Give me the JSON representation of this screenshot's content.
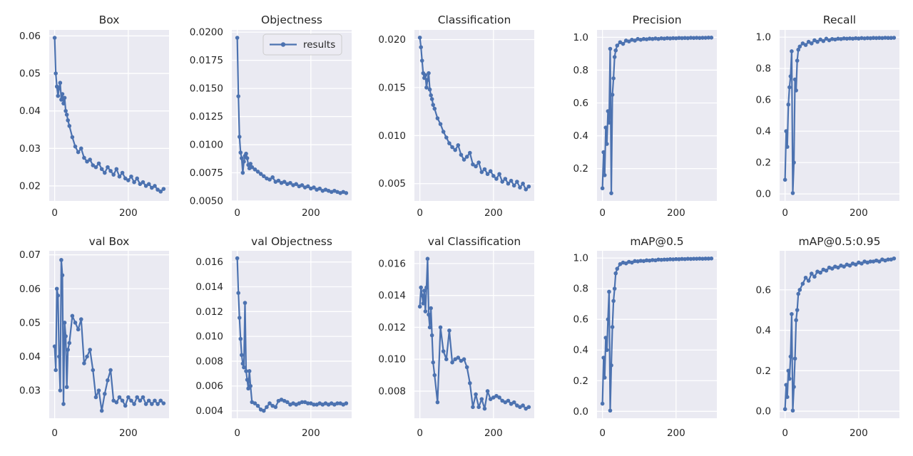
{
  "figure": {
    "kind": "training results grid (YOLO results.png style)",
    "background": "#ffffff",
    "plot_bg": "#eaeaf2",
    "grid_color": "#ffffff",
    "accent": "#4c72b0",
    "text_color": "#262626"
  },
  "chart_data": {
    "type": "line",
    "series_name": "results",
    "legend": {
      "label": "results",
      "subplot": "Objectness",
      "position": "upper right"
    },
    "grid": true,
    "marker": "circle",
    "xlim": [
      -14.8,
      310.8
    ],
    "xticks": {
      "values": [
        0,
        200
      ],
      "labels": [
        "0",
        "200"
      ]
    },
    "x": [
      0,
      3,
      6,
      9,
      12,
      15,
      18,
      21,
      24,
      27,
      30,
      33,
      36,
      40,
      48,
      56,
      64,
      72,
      80,
      88,
      96,
      104,
      112,
      120,
      128,
      136,
      144,
      152,
      160,
      168,
      176,
      184,
      192,
      200,
      208,
      216,
      224,
      232,
      240,
      248,
      256,
      264,
      272,
      280,
      288,
      296
    ],
    "subplots": [
      {
        "title": "Box",
        "row": 0,
        "yticks": [
          "0.02",
          "0.03",
          "0.04",
          "0.05",
          "0.06"
        ],
        "ylim": [
          0.016,
          0.0616
        ],
        "values": [
          0.0595,
          0.05,
          0.0465,
          0.044,
          0.046,
          0.0475,
          0.043,
          0.0445,
          0.042,
          0.0435,
          0.04,
          0.039,
          0.0375,
          0.036,
          0.033,
          0.0305,
          0.029,
          0.03,
          0.0275,
          0.0265,
          0.027,
          0.0255,
          0.025,
          0.026,
          0.0245,
          0.0235,
          0.025,
          0.024,
          0.023,
          0.0245,
          0.0225,
          0.0235,
          0.022,
          0.0215,
          0.0225,
          0.021,
          0.022,
          0.0205,
          0.021,
          0.02,
          0.0205,
          0.0195,
          0.02,
          0.019,
          0.0185,
          0.0192
        ]
      },
      {
        "title": "Objectness",
        "row": 0,
        "show_legend": true,
        "yticks": [
          "0.0050",
          "0.0075",
          "0.0100",
          "0.0125",
          "0.0150",
          "0.0175",
          "0.0200"
        ],
        "ylim": [
          0.005,
          0.0202
        ],
        "values": [
          0.0195,
          0.0143,
          0.0107,
          0.0093,
          0.0088,
          0.0075,
          0.0085,
          0.009,
          0.0092,
          0.0088,
          0.0082,
          0.0079,
          0.0083,
          0.008,
          0.0078,
          0.0076,
          0.0074,
          0.0072,
          0.007,
          0.0069,
          0.0071,
          0.0067,
          0.0068,
          0.0066,
          0.0067,
          0.0065,
          0.0066,
          0.0064,
          0.0065,
          0.0063,
          0.0064,
          0.0062,
          0.0063,
          0.0061,
          0.0062,
          0.006,
          0.0061,
          0.0059,
          0.006,
          0.0059,
          0.0058,
          0.0059,
          0.0058,
          0.0057,
          0.0058,
          0.0057
        ]
      },
      {
        "title": "Classification",
        "row": 0,
        "yticks": [
          "0.005",
          "0.010",
          "0.015",
          "0.020"
        ],
        "ylim": [
          0.0032,
          0.021
        ],
        "values": [
          0.0202,
          0.0192,
          0.0178,
          0.0165,
          0.016,
          0.0163,
          0.015,
          0.0158,
          0.0165,
          0.0148,
          0.0142,
          0.0138,
          0.0132,
          0.0128,
          0.0118,
          0.0112,
          0.0104,
          0.0098,
          0.0092,
          0.0088,
          0.0085,
          0.009,
          0.008,
          0.0075,
          0.0078,
          0.0082,
          0.007,
          0.0068,
          0.0072,
          0.0062,
          0.0065,
          0.006,
          0.0063,
          0.0058,
          0.0055,
          0.006,
          0.0052,
          0.0055,
          0.005,
          0.0053,
          0.0048,
          0.0052,
          0.0046,
          0.005,
          0.0044,
          0.0047
        ]
      },
      {
        "title": "Precision",
        "row": 0,
        "yticks": [
          "0.2",
          "0.4",
          "0.6",
          "0.8",
          "1.0"
        ],
        "ylim": [
          0.003,
          1.045
        ],
        "values": [
          0.08,
          0.3,
          0.16,
          0.45,
          0.35,
          0.55,
          0.48,
          0.93,
          0.05,
          0.65,
          0.75,
          0.88,
          0.92,
          0.95,
          0.97,
          0.96,
          0.98,
          0.975,
          0.985,
          0.98,
          0.99,
          0.985,
          0.99,
          0.988,
          0.992,
          0.99,
          0.993,
          0.99,
          0.994,
          0.992,
          0.995,
          0.993,
          0.995,
          0.994,
          0.996,
          0.995,
          0.996,
          0.995,
          0.997,
          0.996,
          0.997,
          0.996,
          0.997,
          0.997,
          0.998,
          0.998
        ]
      },
      {
        "title": "Recall",
        "row": 0,
        "yticks": [
          "0.0",
          "0.2",
          "0.4",
          "0.6",
          "0.8",
          "1.0"
        ],
        "ylim": [
          -0.045,
          1.046
        ],
        "values": [
          0.09,
          0.4,
          0.3,
          0.57,
          0.68,
          0.75,
          0.91,
          0.005,
          0.2,
          0.73,
          0.66,
          0.85,
          0.92,
          0.94,
          0.96,
          0.95,
          0.97,
          0.96,
          0.98,
          0.97,
          0.985,
          0.975,
          0.99,
          0.98,
          0.988,
          0.985,
          0.99,
          0.988,
          0.992,
          0.99,
          0.992,
          0.99,
          0.993,
          0.991,
          0.994,
          0.992,
          0.994,
          0.993,
          0.995,
          0.994,
          0.995,
          0.994,
          0.996,
          0.995,
          0.995,
          0.996
        ]
      },
      {
        "title": "val Box",
        "row": 1,
        "yticks": [
          "0.03",
          "0.04",
          "0.05",
          "0.06",
          "0.07"
        ],
        "ylim": [
          0.0218,
          0.0712
        ],
        "values": [
          0.043,
          0.036,
          0.06,
          0.058,
          0.04,
          0.03,
          0.0685,
          0.064,
          0.026,
          0.05,
          0.046,
          0.031,
          0.042,
          0.044,
          0.052,
          0.05,
          0.048,
          0.051,
          0.038,
          0.04,
          0.042,
          0.036,
          0.028,
          0.03,
          0.024,
          0.029,
          0.033,
          0.036,
          0.027,
          0.0265,
          0.028,
          0.027,
          0.0255,
          0.028,
          0.027,
          0.026,
          0.028,
          0.027,
          0.028,
          0.026,
          0.027,
          0.026,
          0.027,
          0.026,
          0.027,
          0.0262
        ]
      },
      {
        "title": "val Objectness",
        "row": 1,
        "yticks": [
          "0.004",
          "0.006",
          "0.008",
          "0.010",
          "0.012",
          "0.014",
          "0.016"
        ],
        "ylim": [
          0.0034,
          0.0169
        ],
        "values": [
          0.0163,
          0.0135,
          0.0115,
          0.0098,
          0.0085,
          0.0078,
          0.0075,
          0.0127,
          0.0072,
          0.0065,
          0.0058,
          0.0072,
          0.006,
          0.0047,
          0.0046,
          0.0044,
          0.0041,
          0.004,
          0.0043,
          0.0046,
          0.0044,
          0.0043,
          0.0048,
          0.0049,
          0.0048,
          0.0047,
          0.0045,
          0.0046,
          0.0045,
          0.0046,
          0.0047,
          0.0047,
          0.0046,
          0.0046,
          0.0045,
          0.0045,
          0.0046,
          0.0045,
          0.0046,
          0.0045,
          0.0046,
          0.0045,
          0.0046,
          0.0046,
          0.0045,
          0.0046
        ]
      },
      {
        "title": "val Classification",
        "row": 1,
        "yticks": [
          "0.008",
          "0.010",
          "0.012",
          "0.014",
          "0.016"
        ],
        "ylim": [
          0.0063,
          0.0168
        ],
        "values": [
          0.0133,
          0.0145,
          0.014,
          0.0135,
          0.0143,
          0.013,
          0.0145,
          0.0163,
          0.0128,
          0.012,
          0.0132,
          0.0115,
          0.0098,
          0.009,
          0.0073,
          0.012,
          0.0105,
          0.01,
          0.0118,
          0.0098,
          0.01,
          0.0101,
          0.0099,
          0.01,
          0.0095,
          0.0085,
          0.007,
          0.0078,
          0.007,
          0.0075,
          0.0069,
          0.008,
          0.0075,
          0.0076,
          0.0077,
          0.0076,
          0.0074,
          0.0073,
          0.0074,
          0.0072,
          0.0073,
          0.0071,
          0.007,
          0.0071,
          0.0069,
          0.007
        ]
      },
      {
        "title": "mAP@0.5",
        "row": 1,
        "yticks": [
          "0.0",
          "0.2",
          "0.4",
          "0.6",
          "0.8",
          "1.0"
        ],
        "ylim": [
          -0.045,
          1.047
        ],
        "values": [
          0.05,
          0.35,
          0.22,
          0.48,
          0.4,
          0.6,
          0.78,
          0.005,
          0.3,
          0.55,
          0.72,
          0.8,
          0.9,
          0.93,
          0.96,
          0.97,
          0.965,
          0.975,
          0.97,
          0.98,
          0.978,
          0.982,
          0.98,
          0.985,
          0.983,
          0.987,
          0.985,
          0.99,
          0.988,
          0.99,
          0.99,
          0.992,
          0.991,
          0.993,
          0.992,
          0.994,
          0.993,
          0.995,
          0.994,
          0.995,
          0.995,
          0.996,
          0.995,
          0.996,
          0.996,
          0.997
        ]
      },
      {
        "title": "mAP@0.5:0.95",
        "row": 1,
        "yticks": [
          "0.0",
          "0.2",
          "0.4",
          "0.6"
        ],
        "ylim": [
          -0.035,
          0.793
        ],
        "values": [
          0.01,
          0.13,
          0.07,
          0.2,
          0.16,
          0.27,
          0.48,
          0.003,
          0.12,
          0.26,
          0.45,
          0.5,
          0.58,
          0.6,
          0.63,
          0.66,
          0.645,
          0.68,
          0.665,
          0.69,
          0.685,
          0.7,
          0.695,
          0.71,
          0.705,
          0.715,
          0.71,
          0.72,
          0.715,
          0.725,
          0.72,
          0.73,
          0.725,
          0.735,
          0.73,
          0.74,
          0.735,
          0.74,
          0.74,
          0.745,
          0.74,
          0.75,
          0.745,
          0.75,
          0.75,
          0.755
        ]
      }
    ]
  }
}
